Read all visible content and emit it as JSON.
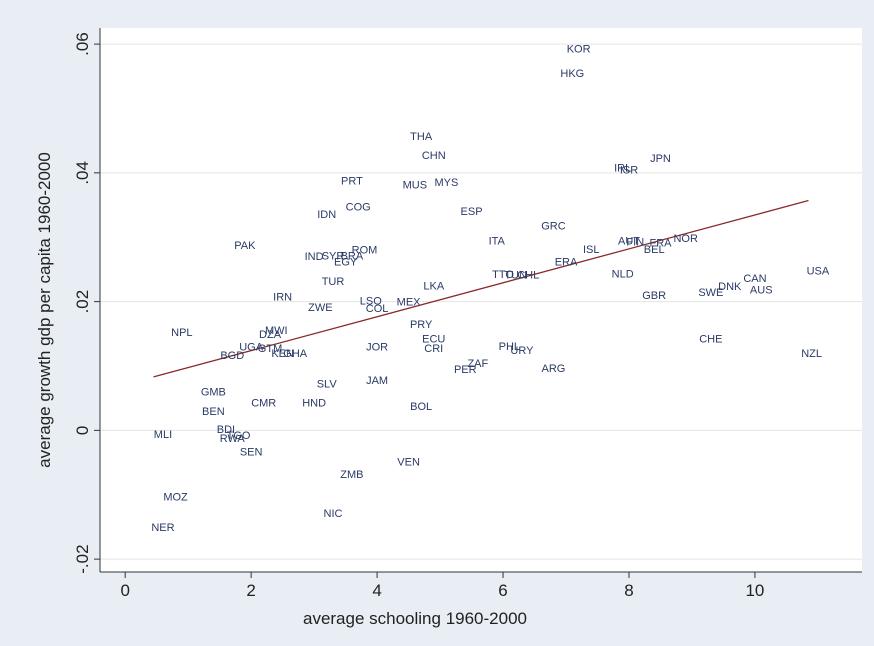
{
  "chart_data": {
    "type": "scatter",
    "title": "",
    "xlabel": "average schooling 1960-2000",
    "ylabel": "average growth gdp per capita 1960-2000",
    "xlim": [
      -0.4,
      11.7
    ],
    "ylim": [
      -0.022,
      0.0625
    ],
    "xticks": [
      0,
      2,
      4,
      6,
      8,
      10
    ],
    "xtick_labels": [
      "0",
      "2",
      "4",
      "6",
      "8",
      "10"
    ],
    "yticks": [
      -0.02,
      0,
      0.02,
      0.04,
      0.06
    ],
    "ytick_labels": [
      "-.02",
      "0",
      ".02",
      ".04",
      ".06"
    ],
    "grid": true,
    "legend": "none",
    "colors": {
      "background": "#e8eef3",
      "plot": "#ffffff",
      "line": "#8b2a2a",
      "labels": "#2a3a66",
      "grid": "#e5e5e5"
    },
    "fit_line": {
      "x": [
        0.45,
        10.85
      ],
      "y": [
        0.0083,
        0.0357
      ]
    },
    "points": [
      {
        "label": "KOR",
        "x": 7.2,
        "y": 0.0593
      },
      {
        "label": "HKG",
        "x": 7.1,
        "y": 0.0555
      },
      {
        "label": "THA",
        "x": 4.7,
        "y": 0.0457
      },
      {
        "label": "CHN",
        "x": 4.9,
        "y": 0.0428
      },
      {
        "label": "IRL",
        "x": 7.9,
        "y": 0.0408
      },
      {
        "label": "ISR",
        "x": 8.0,
        "y": 0.0405
      },
      {
        "label": "JPN",
        "x": 8.5,
        "y": 0.0423
      },
      {
        "label": "PRT",
        "x": 3.6,
        "y": 0.0388
      },
      {
        "label": "MUS",
        "x": 4.6,
        "y": 0.0382
      },
      {
        "label": "MYS",
        "x": 5.1,
        "y": 0.0386
      },
      {
        "label": "IDN",
        "x": 3.2,
        "y": 0.0336
      },
      {
        "label": "COG",
        "x": 3.7,
        "y": 0.0348
      },
      {
        "label": "ESP",
        "x": 5.5,
        "y": 0.0341
      },
      {
        "label": "GRC",
        "x": 6.8,
        "y": 0.0318
      },
      {
        "label": "ITA",
        "x": 5.9,
        "y": 0.0295
      },
      {
        "label": "AUT",
        "x": 8.0,
        "y": 0.0295
      },
      {
        "label": "FIN",
        "x": 8.1,
        "y": 0.0293
      },
      {
        "label": "FRA",
        "x": 8.5,
        "y": 0.0292
      },
      {
        "label": "NOR",
        "x": 8.9,
        "y": 0.0299
      },
      {
        "label": "BEL",
        "x": 8.4,
        "y": 0.0282
      },
      {
        "label": "ISL",
        "x": 7.4,
        "y": 0.0282
      },
      {
        "label": "PAK",
        "x": 1.9,
        "y": 0.0288
      },
      {
        "label": "ROM",
        "x": 3.8,
        "y": 0.0281
      },
      {
        "label": "IND",
        "x": 3.0,
        "y": 0.0271
      },
      {
        "label": "SYR",
        "x": 3.3,
        "y": 0.0272
      },
      {
        "label": "BRA",
        "x": 3.6,
        "y": 0.0272
      },
      {
        "label": "EGY",
        "x": 3.5,
        "y": 0.0262
      },
      {
        "label": "ERA",
        "x": 7.0,
        "y": 0.0262
      },
      {
        "label": "TTO",
        "x": 6.0,
        "y": 0.0243
      },
      {
        "label": "TUN",
        "x": 6.2,
        "y": 0.0242
      },
      {
        "label": "CHL",
        "x": 6.4,
        "y": 0.0242
      },
      {
        "label": "NLD",
        "x": 7.9,
        "y": 0.0244
      },
      {
        "label": "TUR",
        "x": 3.3,
        "y": 0.0232
      },
      {
        "label": "LKA",
        "x": 4.9,
        "y": 0.0225
      },
      {
        "label": "CAN",
        "x": 10.0,
        "y": 0.0237
      },
      {
        "label": "USA",
        "x": 11.0,
        "y": 0.0248
      },
      {
        "label": "DNK",
        "x": 9.6,
        "y": 0.0224
      },
      {
        "label": "AUS",
        "x": 10.1,
        "y": 0.0219
      },
      {
        "label": "SWE",
        "x": 9.3,
        "y": 0.0215
      },
      {
        "label": "GBR",
        "x": 8.4,
        "y": 0.021
      },
      {
        "label": "IRN",
        "x": 2.5,
        "y": 0.0208
      },
      {
        "label": "LSO",
        "x": 3.9,
        "y": 0.0202
      },
      {
        "label": "MEX",
        "x": 4.5,
        "y": 0.02
      },
      {
        "label": "ZWE",
        "x": 3.1,
        "y": 0.0192
      },
      {
        "label": "COL",
        "x": 4.0,
        "y": 0.019
      },
      {
        "label": "PRY",
        "x": 4.7,
        "y": 0.0165
      },
      {
        "label": "NPL",
        "x": 0.9,
        "y": 0.0153
      },
      {
        "label": "MWI",
        "x": 2.4,
        "y": 0.0156
      },
      {
        "label": "DZA",
        "x": 2.3,
        "y": 0.015
      },
      {
        "label": "ECU",
        "x": 4.9,
        "y": 0.0143
      },
      {
        "label": "CHE",
        "x": 9.3,
        "y": 0.0143
      },
      {
        "label": "JOR",
        "x": 4.0,
        "y": 0.013
      },
      {
        "label": "CRI",
        "x": 4.9,
        "y": 0.0128
      },
      {
        "label": "PHL",
        "x": 6.1,
        "y": 0.0131
      },
      {
        "label": "URY",
        "x": 6.3,
        "y": 0.0125
      },
      {
        "label": "UGA",
        "x": 2.0,
        "y": 0.013
      },
      {
        "label": "GTM",
        "x": 2.3,
        "y": 0.0128
      },
      {
        "label": "KEN",
        "x": 2.5,
        "y": 0.012
      },
      {
        "label": "GHA",
        "x": 2.7,
        "y": 0.012
      },
      {
        "label": "BGD",
        "x": 1.7,
        "y": 0.0117
      },
      {
        "label": "NZL",
        "x": 10.9,
        "y": 0.012
      },
      {
        "label": "ZAF",
        "x": 5.6,
        "y": 0.0105
      },
      {
        "label": "PER",
        "x": 5.4,
        "y": 0.0095
      },
      {
        "label": "ARG",
        "x": 6.8,
        "y": 0.0097
      },
      {
        "label": "SLV",
        "x": 3.2,
        "y": 0.0073
      },
      {
        "label": "JAM",
        "x": 4.0,
        "y": 0.0078
      },
      {
        "label": "GMB",
        "x": 1.4,
        "y": 0.006
      },
      {
        "label": "CMR",
        "x": 2.2,
        "y": 0.0043
      },
      {
        "label": "HND",
        "x": 3.0,
        "y": 0.0043
      },
      {
        "label": "BOL",
        "x": 4.7,
        "y": 0.0038
      },
      {
        "label": "BEN",
        "x": 1.4,
        "y": 0.003
      },
      {
        "label": "MLI",
        "x": 0.6,
        "y": -0.0006
      },
      {
        "label": "BDI",
        "x": 1.6,
        "y": 0.0002
      },
      {
        "label": "RWA",
        "x": 1.7,
        "y": -0.0012
      },
      {
        "label": "TGO",
        "x": 1.8,
        "y": -0.0007
      },
      {
        "label": "SEN",
        "x": 2.0,
        "y": -0.0033
      },
      {
        "label": "VEN",
        "x": 4.5,
        "y": -0.0048
      },
      {
        "label": "ZMB",
        "x": 3.6,
        "y": -0.0068
      },
      {
        "label": "MOZ",
        "x": 0.8,
        "y": -0.0103
      },
      {
        "label": "NIC",
        "x": 3.3,
        "y": -0.0128
      },
      {
        "label": "NER",
        "x": 0.6,
        "y": -0.015
      }
    ]
  }
}
